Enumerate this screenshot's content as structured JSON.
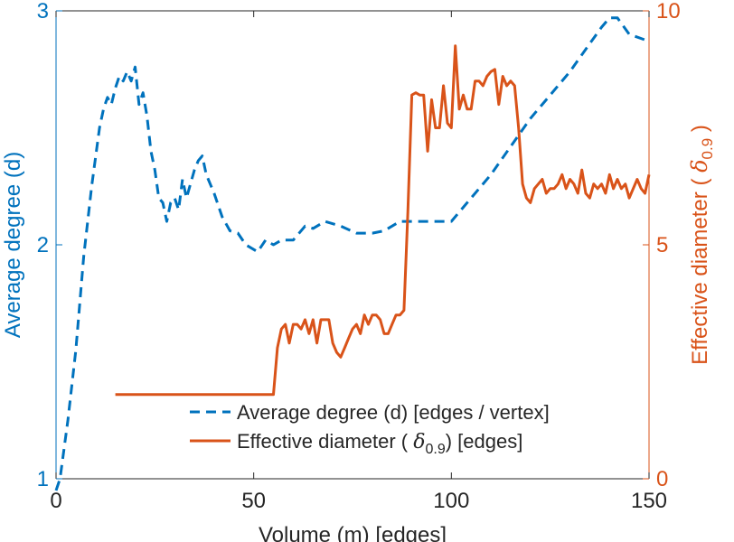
{
  "chart_data": {
    "type": "line",
    "title": "",
    "xlabel": "Volume (m) [edges]",
    "ylabel_left": {
      "text": "Average degree (d)",
      "color": "#0072BD",
      "ylim": [
        1,
        3
      ],
      "ticks": [
        1,
        2,
        3
      ],
      "tick_labels": [
        "1",
        "2",
        "3"
      ]
    },
    "ylabel_right": {
      "prefix": "Effective diameter (",
      "symbol": "δ",
      "subscript": "0.9",
      "suffix": ")",
      "color": "#D95319",
      "ylim": [
        0,
        10
      ],
      "ticks": [
        0,
        5,
        10
      ],
      "tick_labels": [
        "0",
        "5",
        "10"
      ]
    },
    "xlim": [
      0,
      150
    ],
    "x_ticks": [
      0,
      50,
      100,
      150
    ],
    "x_tick_labels": [
      "0",
      "50",
      "100",
      "150"
    ],
    "grid": false,
    "legend_position": "bottom-center",
    "series": [
      {
        "name": "Average degree (d) [edges / vertex]",
        "axis": "left",
        "style": "dashed",
        "color": "#0072BD",
        "x": [
          0,
          1,
          3,
          5,
          7,
          9,
          11,
          12,
          13,
          14,
          15,
          16,
          17,
          18,
          19,
          20,
          21,
          22,
          23,
          24,
          25,
          26,
          27,
          28,
          29,
          30,
          31,
          32,
          33,
          34,
          35,
          36,
          37,
          38,
          40,
          42,
          44,
          46,
          48,
          50,
          51,
          53,
          55,
          57,
          60,
          63,
          65,
          68,
          72,
          76,
          80,
          83,
          87,
          90,
          95,
          98,
          100,
          105,
          110,
          115,
          120,
          125,
          130,
          135,
          138,
          140,
          142,
          145,
          150
        ],
        "y": [
          0.95,
          1.0,
          1.25,
          1.55,
          1.95,
          2.25,
          2.5,
          2.58,
          2.63,
          2.6,
          2.67,
          2.72,
          2.7,
          2.74,
          2.7,
          2.76,
          2.6,
          2.65,
          2.55,
          2.4,
          2.32,
          2.2,
          2.18,
          2.1,
          2.18,
          2.2,
          2.15,
          2.28,
          2.2,
          2.26,
          2.32,
          2.36,
          2.38,
          2.3,
          2.22,
          2.12,
          2.06,
          2.05,
          2.0,
          1.98,
          1.97,
          2.02,
          2.0,
          2.02,
          2.02,
          2.08,
          2.07,
          2.1,
          2.08,
          2.05,
          2.05,
          2.06,
          2.1,
          2.1,
          2.1,
          2.1,
          2.1,
          2.2,
          2.3,
          2.42,
          2.54,
          2.64,
          2.74,
          2.86,
          2.93,
          2.97,
          2.97,
          2.9,
          2.87
        ]
      },
      {
        "name": "Effective diameter (δ0.9) [edges]",
        "legend_prefix": "Effective diameter (",
        "legend_symbol": "δ",
        "legend_subscript": "0.9",
        "legend_suffix": ") [edges]",
        "axis": "right",
        "style": "solid",
        "color": "#D95319",
        "x": [
          15,
          20,
          30,
          40,
          50,
          55,
          56,
          57,
          58,
          59,
          60,
          61,
          62,
          63,
          64,
          65,
          66,
          67,
          68,
          69,
          70,
          71,
          72,
          73,
          74,
          75,
          76,
          77,
          78,
          79,
          80,
          81,
          82,
          83,
          84,
          85,
          86,
          87,
          88,
          89,
          90,
          91,
          92,
          93,
          94,
          95,
          96,
          97,
          98,
          99,
          100,
          101,
          102,
          103,
          104,
          105,
          106,
          107,
          108,
          109,
          110,
          111,
          112,
          113,
          114,
          115,
          116,
          117,
          118,
          119,
          120,
          121,
          122,
          123,
          124,
          125,
          126,
          127,
          128,
          129,
          130,
          131,
          132,
          133,
          134,
          135,
          136,
          137,
          138,
          139,
          140,
          141,
          142,
          143,
          144,
          145,
          146,
          147,
          148,
          149,
          150
        ],
        "y": [
          1.8,
          1.8,
          1.8,
          1.8,
          1.8,
          1.8,
          2.8,
          3.2,
          3.3,
          2.9,
          3.3,
          3.3,
          3.2,
          3.4,
          3.1,
          3.4,
          2.9,
          3.4,
          3.4,
          3.4,
          2.9,
          2.7,
          2.6,
          2.8,
          3.0,
          3.2,
          3.3,
          3.1,
          3.5,
          3.3,
          3.5,
          3.5,
          3.4,
          3.1,
          3.1,
          3.3,
          3.5,
          3.5,
          3.6,
          5.7,
          8.2,
          8.25,
          8.2,
          8.2,
          7.0,
          8.1,
          7.5,
          7.5,
          8.4,
          7.6,
          7.5,
          9.25,
          7.9,
          8.2,
          7.9,
          7.9,
          8.5,
          8.5,
          8.4,
          8.6,
          8.7,
          8.75,
          8.0,
          8.6,
          8.4,
          8.5,
          8.4,
          7.5,
          6.3,
          6.0,
          5.9,
          6.2,
          6.3,
          6.4,
          6.1,
          6.2,
          6.2,
          6.3,
          6.5,
          6.2,
          6.4,
          6.3,
          6.1,
          6.6,
          6.1,
          6.0,
          6.3,
          6.2,
          6.3,
          6.1,
          6.5,
          6.2,
          6.4,
          6.2,
          6.3,
          6.0,
          6.2,
          6.4,
          6.2,
          6.1,
          6.5
        ]
      }
    ]
  }
}
